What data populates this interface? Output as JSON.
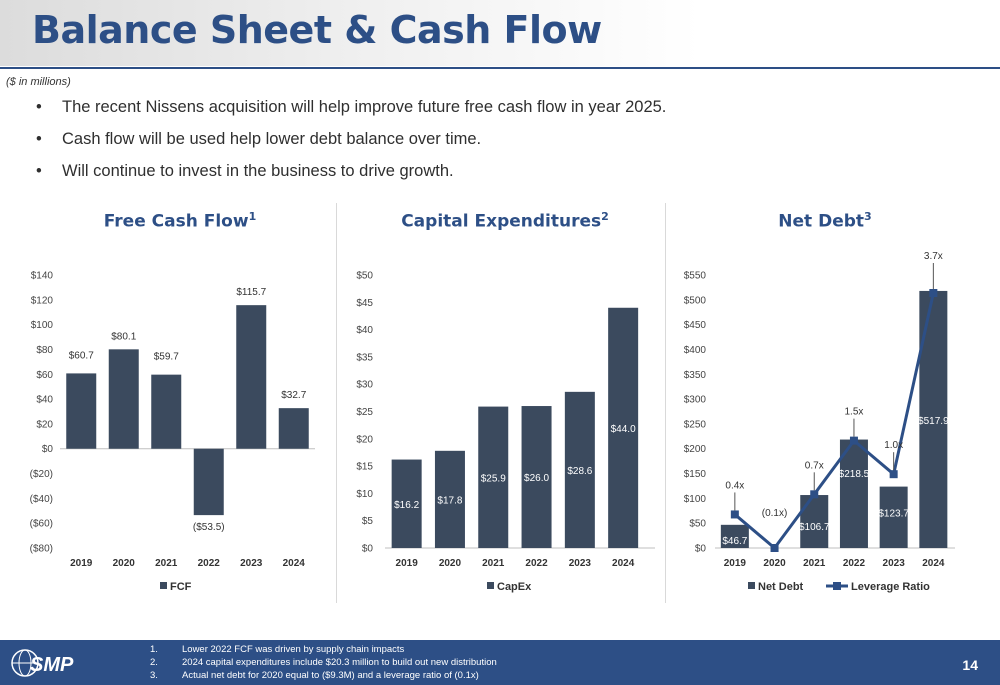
{
  "header": {
    "title": "Balance Sheet & Cash Flow",
    "units_note": "($ in millions)"
  },
  "bullets": [
    "The recent Nissens acquisition will help improve future free cash flow in year 2025.",
    "Cash flow will be used help lower debt balance over time.",
    "Will continue to invest in the business to drive growth."
  ],
  "colors": {
    "brand": "#2d4f86",
    "bar": "#3b4a5e",
    "line": "#2d4f86",
    "footer": "#2d4f86"
  },
  "chart_data": [
    {
      "type": "bar",
      "title": "Free Cash Flow",
      "title_sup": "1",
      "categories": [
        "2019",
        "2020",
        "2021",
        "2022",
        "2023",
        "2024"
      ],
      "series": [
        {
          "name": "FCF",
          "values": [
            60.7,
            80.1,
            59.7,
            -53.5,
            115.7,
            32.7
          ]
        }
      ],
      "data_labels": [
        "$60.7",
        "$80.1",
        "$59.7",
        "($53.5)",
        "$115.7",
        "$32.7"
      ],
      "ylim": [
        -80,
        140
      ],
      "yticks": [
        140,
        120,
        100,
        80,
        60,
        40,
        20,
        0,
        -20,
        -40,
        -60,
        -80
      ],
      "ytick_labels": [
        "$140",
        "$120",
        "$100",
        "$80",
        "$60",
        "$40",
        "$20",
        "$0",
        "($20)",
        "($40)",
        "($60)",
        "($80)"
      ],
      "legend": "bottom",
      "grid": false
    },
    {
      "type": "bar",
      "title": "Capital Expenditures",
      "title_sup": "2",
      "categories": [
        "2019",
        "2020",
        "2021",
        "2022",
        "2023",
        "2024"
      ],
      "series": [
        {
          "name": "CapEx",
          "values": [
            16.2,
            17.8,
            25.9,
            26.0,
            28.6,
            44.0
          ]
        }
      ],
      "data_labels": [
        "$16.2",
        "$17.8",
        "$25.9",
        "$26.0",
        "$28.6",
        "$44.0"
      ],
      "ylim": [
        0,
        50
      ],
      "yticks": [
        50,
        45,
        40,
        35,
        30,
        25,
        20,
        15,
        10,
        5,
        0
      ],
      "ytick_labels": [
        "$50",
        "$45",
        "$40",
        "$35",
        "$30",
        "$25",
        "$20",
        "$15",
        "$10",
        "$5",
        "$0"
      ],
      "legend": "bottom",
      "grid": false
    },
    {
      "type": "bar",
      "title": "Net Debt",
      "title_sup": "3",
      "categories": [
        "2019",
        "2020",
        "2021",
        "2022",
        "2023",
        "2024"
      ],
      "series": [
        {
          "name": "Net Debt",
          "values": [
            46.7,
            0,
            106.7,
            218.5,
            123.7,
            517.9
          ]
        },
        {
          "name": "Leverage Ratio",
          "type": "line",
          "values": [
            0.4,
            -0.1,
            0.7,
            1.5,
            1.0,
            3.7
          ]
        }
      ],
      "data_labels": [
        "$46.7",
        "",
        "$106.7",
        "$218.5",
        "$123.7",
        "$517.9"
      ],
      "ratio_labels": [
        "0.4x",
        "(0.1x)",
        "0.7x",
        "1.5x",
        "1.0x",
        "3.7x"
      ],
      "ylim": [
        0,
        550
      ],
      "y2lim": [
        -0.1,
        3.7
      ],
      "yticks": [
        550,
        500,
        450,
        400,
        350,
        300,
        250,
        200,
        150,
        100,
        50,
        0
      ],
      "ytick_labels": [
        "$550",
        "$500",
        "$450",
        "$400",
        "$350",
        "$300",
        "$250",
        "$200",
        "$150",
        "$100",
        "$50",
        "$0"
      ],
      "legend": "bottom",
      "grid": false
    }
  ],
  "footer": {
    "logo_text": "SMP",
    "notes": [
      {
        "num": "1.",
        "text": "Lower 2022 FCF was driven by supply chain impacts"
      },
      {
        "num": "2.",
        "text": "2024 capital expenditures include $20.3 million to build out new distribution"
      },
      {
        "num": "3.",
        "text": "Actual net debt for 2020 equal to ($9.3M) and a leverage ratio of (0.1x)"
      }
    ],
    "page_number": "14"
  }
}
